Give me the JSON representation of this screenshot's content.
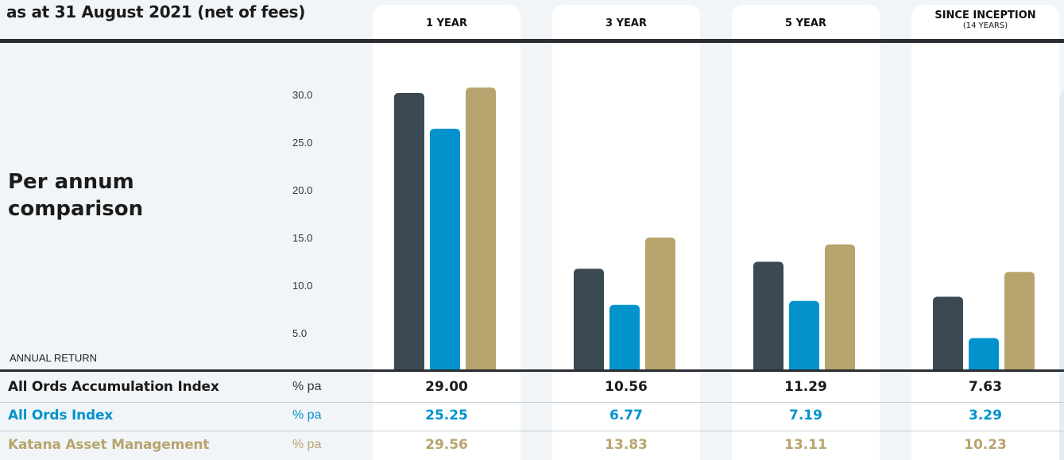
{
  "subtitle": "as at 31 August 2021 (net of fees)",
  "title": "Per annum comparison",
  "colors": {
    "all_ords_accumulation": "#3b4953",
    "all_ords": "#0393cc",
    "katana": "#b8a46e"
  },
  "chart_data": {
    "type": "bar",
    "categories": [
      "1 YEAR",
      "3 YEAR",
      "5 YEAR",
      "SINCE INCEPTION"
    ],
    "category_subtitles": [
      "",
      "",
      "",
      "(14 YEARS)"
    ],
    "series": [
      {
        "name": "All Ords Accumulation Index",
        "unit": "% pa",
        "values": [
          "29.00",
          "10.56",
          "11.29",
          "7.63"
        ]
      },
      {
        "name": "All Ords Index",
        "unit": "% pa",
        "values": [
          "25.25",
          "6.77",
          "7.19",
          "3.29"
        ]
      },
      {
        "name": "Katana Asset Management",
        "unit": "% pa",
        "values": [
          "29.56",
          "13.83",
          "13.11",
          "10.23"
        ]
      }
    ],
    "ylabel": "ANNUAL RETURN",
    "yticks": [
      "5.0",
      "10.0",
      "15.0",
      "20.0",
      "25.0",
      "30.0"
    ],
    "ylim": [
      0,
      30
    ],
    "grid": false
  }
}
